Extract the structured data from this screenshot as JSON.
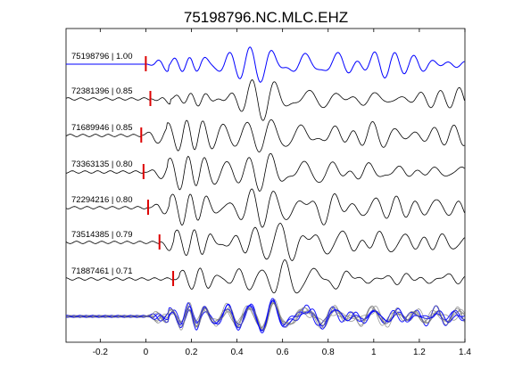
{
  "chart_data": {
    "type": "line",
    "title": "75198796.NC.MLC.EHZ",
    "xlim": [
      -0.35,
      1.4
    ],
    "x_ticks": [
      "-0.2",
      "0",
      "0.2",
      "0.4",
      "0.6",
      "0.8",
      "1",
      "1.2",
      "1.4"
    ],
    "x_tick_values": [
      -0.2,
      0,
      0.2,
      0.4,
      0.6,
      0.8,
      1.0,
      1.2,
      1.4
    ],
    "grid": false,
    "y_ticks_shown": false,
    "colors": {
      "reference": "#0000ff",
      "trace": "#000000",
      "marker": "#dd0000",
      "stack": "#777777"
    },
    "series": [
      {
        "label": "75198796 | 1.00",
        "pick_time": 0.0,
        "reference": true,
        "seed": 1
      },
      {
        "label": "72381396 | 0.85",
        "pick_time": 0.02,
        "reference": false,
        "seed": 2
      },
      {
        "label": "71689946 | 0.85",
        "pick_time": -0.02,
        "reference": false,
        "seed": 3
      },
      {
        "label": "73363135 | 0.80",
        "pick_time": -0.01,
        "reference": false,
        "seed": 4
      },
      {
        "label": "72294216 | 0.80",
        "pick_time": 0.01,
        "reference": false,
        "seed": 5
      },
      {
        "label": "73514385 | 0.79",
        "pick_time": 0.06,
        "reference": false,
        "seed": 6
      },
      {
        "label": "71887461 | 0.71",
        "pick_time": 0.12,
        "reference": false,
        "seed": 7
      }
    ],
    "overlay_trace_count": 8
  }
}
